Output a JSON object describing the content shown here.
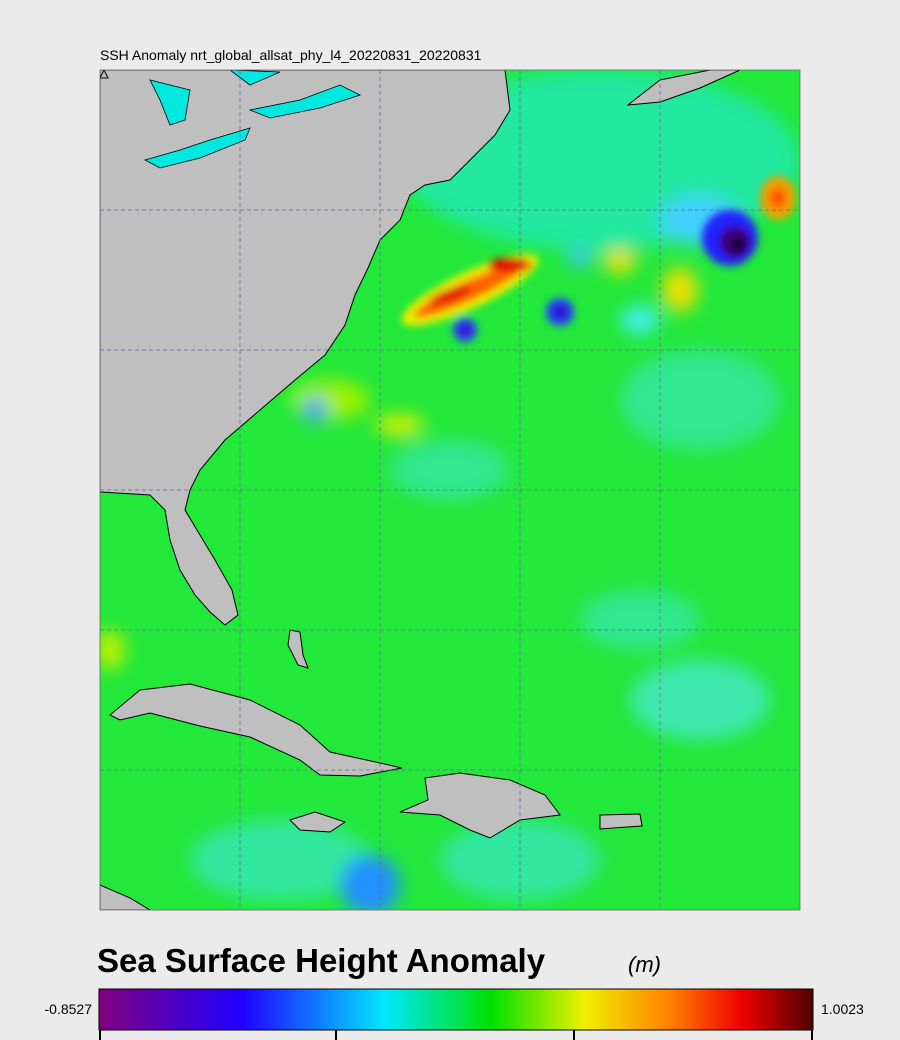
{
  "map": {
    "title": "SSH Anomaly nrt_global_allsat_phy_l4_20220831_20220831"
  },
  "colorbar": {
    "title": "Sea Surface Height Anomaly",
    "unit": "(m)",
    "min": -0.8527,
    "max": 1.0023
  }
}
